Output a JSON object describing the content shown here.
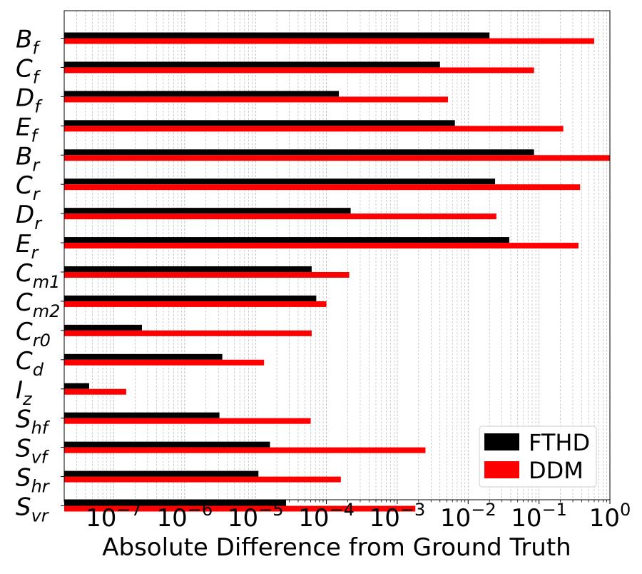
{
  "chart_data": {
    "type": "bar",
    "orientation": "horizontal",
    "title": "",
    "xlabel": "Absolute Difference from Ground Truth",
    "ylabel": "",
    "xscale": "log",
    "xlim": [
      2e-08,
      1
    ],
    "grid": "x-major-and-minor-dashed",
    "legend_position": "bottom-right",
    "x_ticks": [
      {
        "base": "10",
        "exp": "−7"
      },
      {
        "base": "10",
        "exp": "−6"
      },
      {
        "base": "10",
        "exp": "−5"
      },
      {
        "base": "10",
        "exp": "−4"
      },
      {
        "base": "10",
        "exp": "−3"
      },
      {
        "base": "10",
        "exp": "−2"
      },
      {
        "base": "10",
        "exp": "−1"
      },
      {
        "base": "10",
        "exp": "0"
      }
    ],
    "x_tick_values": [
      1e-07,
      1e-06,
      1e-05,
      0.0001,
      0.001,
      0.01,
      0.1,
      1
    ],
    "categories": [
      {
        "main": "B",
        "sub": "f"
      },
      {
        "main": "C",
        "sub": "f"
      },
      {
        "main": "D",
        "sub": "f"
      },
      {
        "main": "E",
        "sub": "f"
      },
      {
        "main": "B",
        "sub": "r"
      },
      {
        "main": "C",
        "sub": "r"
      },
      {
        "main": "D",
        "sub": "r"
      },
      {
        "main": "E",
        "sub": "r"
      },
      {
        "main": "C",
        "sub": "m1"
      },
      {
        "main": "C",
        "sub": "m2"
      },
      {
        "main": "C",
        "sub": "r0"
      },
      {
        "main": "C",
        "sub": "d"
      },
      {
        "main": "I",
        "sub": "z"
      },
      {
        "main": "S",
        "sub": "hf"
      },
      {
        "main": "S",
        "sub": "vf"
      },
      {
        "main": "S",
        "sub": "hr"
      },
      {
        "main": "S",
        "sub": "vr"
      }
    ],
    "series": [
      {
        "name": "FTHD",
        "color": "#000000",
        "values": [
          0.02,
          0.004,
          0.00015,
          0.0065,
          0.085,
          0.024,
          0.00022,
          0.038,
          6.2e-05,
          7.2e-05,
          2.5e-07,
          3.4e-06,
          4.5e-08,
          3.1e-06,
          1.6e-05,
          1.1e-05,
          2.7e-05
        ]
      },
      {
        "name": "DDM",
        "color": "#ff0000",
        "values": [
          0.6,
          0.085,
          0.0052,
          0.22,
          1.0,
          0.38,
          0.025,
          0.36,
          0.00021,
          0.0001,
          6.2e-05,
          1.32e-05,
          1.5e-07,
          6e-05,
          0.0025,
          0.00016,
          0.0018
        ]
      }
    ]
  }
}
